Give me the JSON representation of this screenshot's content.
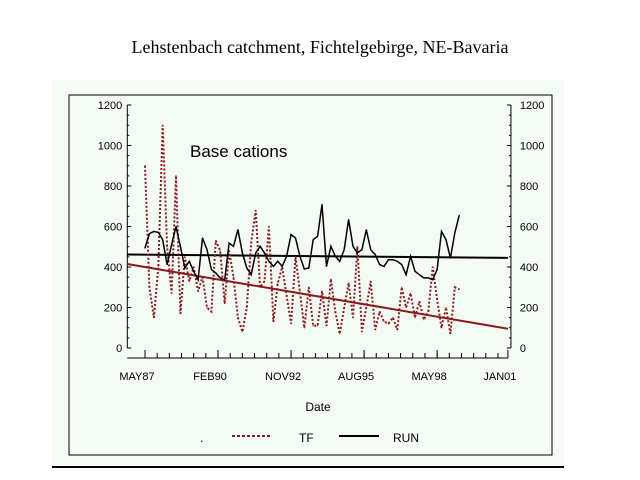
{
  "chart_data": {
    "type": "line",
    "title": "Lehstenbach catchment, Fichtelgebirge, NE-Bavaria",
    "annotation": "Base cations",
    "xlabel": "Date",
    "ylabel": "",
    "ylim": [
      0,
      1200
    ],
    "xlim": [
      "1986-09",
      "2001-01"
    ],
    "y_ticks": [
      0,
      200,
      400,
      600,
      800,
      1000,
      1200
    ],
    "x_ticks": [
      {
        "date": "1987-05",
        "label": "MAY87"
      },
      {
        "date": "1990-02",
        "label": "FEB90"
      },
      {
        "date": "1992-11",
        "label": "NOV92"
      },
      {
        "date": "1995-08",
        "label": "AUG95"
      },
      {
        "date": "1998-05",
        "label": "MAY98"
      },
      {
        "date": "2001-01",
        "label": "JAN01"
      }
    ],
    "right_axis": true,
    "grid": false,
    "legend": {
      "position": "bottom",
      "items": [
        ".",
        "TF",
        "RUN"
      ]
    },
    "x": [
      "1987-05",
      "1987-07",
      "1987-09",
      "1987-11",
      "1988-01",
      "1988-03",
      "1988-05",
      "1988-07",
      "1988-09",
      "1988-11",
      "1989-01",
      "1989-03",
      "1989-05",
      "1989-07",
      "1989-09",
      "1989-11",
      "1990-01",
      "1990-03",
      "1990-05",
      "1990-07",
      "1990-09",
      "1990-11",
      "1991-01",
      "1991-03",
      "1991-05",
      "1991-07",
      "1991-09",
      "1991-11",
      "1992-01",
      "1992-03",
      "1992-05",
      "1992-07",
      "1992-09",
      "1992-11",
      "1993-01",
      "1993-03",
      "1993-05",
      "1993-07",
      "1993-09",
      "1993-11",
      "1994-01",
      "1994-03",
      "1994-05",
      "1994-07",
      "1994-09",
      "1994-11",
      "1995-01",
      "1995-03",
      "1995-05",
      "1995-07",
      "1995-09",
      "1995-11",
      "1996-01",
      "1996-03",
      "1996-05",
      "1996-07",
      "1996-09",
      "1996-11",
      "1997-01",
      "1997-03",
      "1997-05",
      "1997-07",
      "1997-09",
      "1997-11",
      "1998-01",
      "1998-03",
      "1998-05",
      "1998-07",
      "1998-09",
      "1998-11",
      "1999-01",
      "1999-03"
    ],
    "series": [
      {
        "name": "TF",
        "style": "dotted",
        "color": "#8b1a1a",
        "values": [
          900,
          300,
          150,
          400,
          1100,
          500,
          270,
          850,
          170,
          450,
          330,
          400,
          280,
          350,
          200,
          180,
          530,
          480,
          220,
          480,
          350,
          150,
          80,
          200,
          520,
          680,
          300,
          330,
          600,
          130,
          320,
          400,
          260,
          120,
          450,
          280,
          100,
          300,
          110,
          110,
          280,
          110,
          340,
          180,
          70,
          200,
          320,
          150,
          500,
          80,
          200,
          330,
          90,
          180,
          130,
          120,
          150,
          90,
          300,
          200,
          270,
          150,
          230,
          140,
          180,
          400,
          240,
          100,
          200,
          70,
          300,
          290
        ]
      },
      {
        "name": "RUN",
        "style": "solid",
        "color": "#000000",
        "values": [
          494,
          565,
          576,
          571,
          535,
          412,
          510,
          600,
          502,
          395,
          428,
          379,
          337,
          543,
          486,
          387,
          370,
          346,
          337,
          518,
          502,
          584,
          469,
          395,
          362,
          469,
          502,
          469,
          428,
          403,
          428,
          403,
          453,
          560,
          543,
          453,
          390,
          395,
          535,
          551,
          708,
          403,
          502,
          453,
          428,
          486,
          634,
          502,
          469,
          486,
          584,
          486,
          461,
          412,
          403,
          436,
          436,
          428,
          412,
          362,
          453,
          379,
          362,
          346,
          346,
          337,
          387,
          576,
          535,
          444,
          568,
          655
        ]
      }
    ],
    "trend_lines": [
      {
        "series": "TF",
        "color": "#8b1a1a",
        "from": {
          "date": "1986-09",
          "value": 415
        },
        "to": {
          "date": "2001-01",
          "value": 95
        }
      },
      {
        "series": "RUN",
        "color": "#000000",
        "from": {
          "date": "1986-09",
          "value": 462
        },
        "to": {
          "date": "2001-01",
          "value": 445
        }
      }
    ]
  }
}
